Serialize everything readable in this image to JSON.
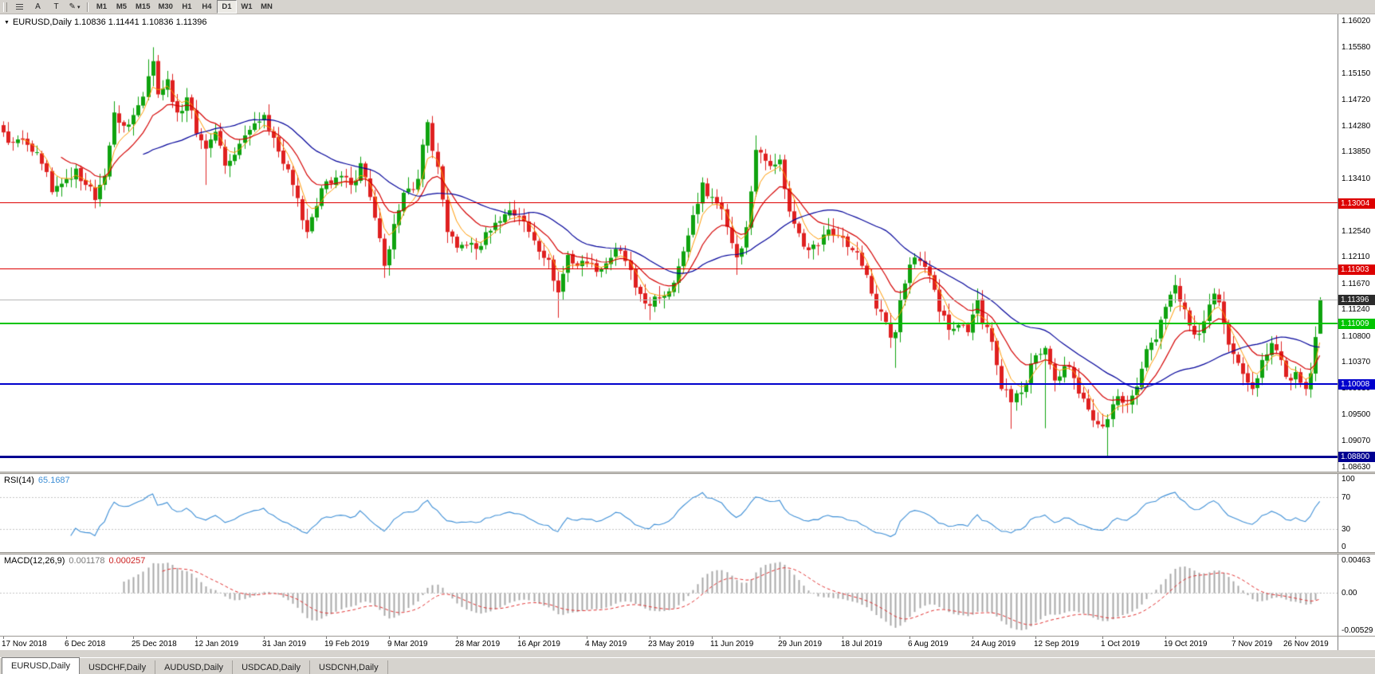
{
  "colors": {
    "bull": "#0fa30f",
    "bear": "#df2020",
    "bid_line": "#b9b9b9",
    "bid_tag": "#2b2b2b",
    "app_bg": "#d6d3ce",
    "chart_bg": "#ffffff"
  },
  "toolbar": {
    "tools": [
      {
        "id": "bars",
        "glyph": "",
        "icon": "bar-chart-icon"
      },
      {
        "id": "label-a",
        "glyph": "A",
        "icon": "text-a-icon"
      },
      {
        "id": "label-t",
        "glyph": "T",
        "icon": "text-t-icon"
      },
      {
        "id": "draw",
        "glyph": "✎",
        "caret": "▾",
        "icon": "pencil-icon"
      }
    ],
    "timeframes": [
      "M1",
      "M5",
      "M15",
      "M30",
      "H1",
      "H4",
      "D1",
      "W1",
      "MN"
    ],
    "active_timeframe": "D1"
  },
  "chart_data": {
    "type": "candlestick",
    "symbol": "EURUSD",
    "timeframe": "Daily",
    "title": "EURUSD,Daily 1.10836 1.11441 1.10836 1.11396",
    "ohlc_display": {
      "open": "1.10836",
      "high": "1.11441",
      "low": "1.10836",
      "close": "1.11396"
    },
    "bars": 274,
    "price_axis": {
      "min": 1.0863,
      "max": 1.1602,
      "ticks": [
        "1.16020",
        "1.15580",
        "1.15150",
        "1.14720",
        "1.14280",
        "1.13850",
        "1.13410",
        "1.12980",
        "1.12540",
        "1.12110",
        "1.11670",
        "1.11240",
        "1.10800",
        "1.10370",
        "1.09930",
        "1.09500",
        "1.09070",
        "1.08630"
      ]
    },
    "time_axis_labels": [
      "17 Nov 2018",
      "6 Dec 2018",
      "25 Dec 2018",
      "12 Jan 2019",
      "31 Jan 2019",
      "19 Feb 2019",
      "9 Mar 2019",
      "28 Mar 2019",
      "16 Apr 2019",
      "4 May 2019",
      "23 May 2019",
      "11 Jun 2019",
      "29 Jun 2019",
      "18 Jul 2019",
      "6 Aug 2019",
      "24 Aug 2019",
      "12 Sep 2019",
      "1 Oct 2019",
      "19 Oct 2019",
      "7 Nov 2019",
      "26 Nov 2019"
    ],
    "close_anchors": [
      [
        0,
        1.1417
      ],
      [
        2,
        1.14
      ],
      [
        4,
        1.1405
      ],
      [
        6,
        1.1385
      ],
      [
        8,
        1.1365
      ],
      [
        10,
        1.1318
      ],
      [
        12,
        1.1332
      ],
      [
        13,
        1.134
      ],
      [
        15,
        1.1357
      ],
      [
        17,
        1.133
      ],
      [
        19,
        1.1305
      ],
      [
        21,
        1.1345
      ],
      [
        23,
        1.145
      ],
      [
        25,
        1.1428
      ],
      [
        26,
        1.143
      ],
      [
        28,
        1.1462
      ],
      [
        30,
        1.151
      ],
      [
        31,
        1.1535
      ],
      [
        32,
        1.148
      ],
      [
        34,
        1.1505
      ],
      [
        36,
        1.145
      ],
      [
        38,
        1.1475
      ],
      [
        40,
        1.1415
      ],
      [
        42,
        1.139
      ],
      [
        44,
        1.1418
      ],
      [
        46,
        1.1362
      ],
      [
        48,
        1.138
      ],
      [
        50,
        1.1412
      ],
      [
        52,
        1.1432
      ],
      [
        54,
        1.1446
      ],
      [
        56,
        1.1408
      ],
      [
        58,
        1.1365
      ],
      [
        60,
        1.133
      ],
      [
        63,
        1.1252
      ],
      [
        65,
        1.1295
      ],
      [
        67,
        1.1336
      ],
      [
        70,
        1.1345
      ],
      [
        72,
        1.133
      ],
      [
        74,
        1.1366
      ],
      [
        76,
        1.131
      ],
      [
        79,
        1.1196
      ],
      [
        82,
        1.1288
      ],
      [
        84,
        1.1324
      ],
      [
        86,
        1.134
      ],
      [
        88,
        1.1434
      ],
      [
        90,
        1.136
      ],
      [
        92,
        1.1252
      ],
      [
        94,
        1.1226
      ],
      [
        96,
        1.123
      ],
      [
        98,
        1.1224
      ],
      [
        101,
        1.1254
      ],
      [
        103,
        1.127
      ],
      [
        105,
        1.1288
      ],
      [
        107,
        1.1278
      ],
      [
        110,
        1.1238
      ],
      [
        113,
        1.1206
      ],
      [
        115,
        1.1152
      ],
      [
        117,
        1.1214
      ],
      [
        119,
        1.1196
      ],
      [
        121,
        1.12
      ],
      [
        123,
        1.1186
      ],
      [
        125,
        1.12
      ],
      [
        127,
        1.1224
      ],
      [
        129,
        1.1204
      ],
      [
        131,
        1.116
      ],
      [
        134,
        1.113
      ],
      [
        136,
        1.1142
      ],
      [
        139,
        1.1168
      ],
      [
        141,
        1.122
      ],
      [
        143,
        1.128
      ],
      [
        145,
        1.1334
      ],
      [
        147,
        1.131
      ],
      [
        149,
        1.129
      ],
      [
        152,
        1.121
      ],
      [
        154,
        1.126
      ],
      [
        156,
        1.1388
      ],
      [
        158,
        1.137
      ],
      [
        161,
        1.1372
      ],
      [
        163,
        1.1286
      ],
      [
        165,
        1.125
      ],
      [
        167,
        1.1222
      ],
      [
        169,
        1.123
      ],
      [
        171,
        1.1256
      ],
      [
        173,
        1.1246
      ],
      [
        176,
        1.1222
      ],
      [
        178,
        1.1196
      ],
      [
        180,
        1.115
      ],
      [
        182,
        1.112
      ],
      [
        184,
        1.1077
      ],
      [
        185,
        1.1086
      ],
      [
        186,
        1.114
      ],
      [
        188,
        1.1198
      ],
      [
        190,
        1.1204
      ],
      [
        192,
        1.118
      ],
      [
        194,
        1.112
      ],
      [
        196,
        1.109
      ],
      [
        198,
        1.1098
      ],
      [
        200,
        1.1086
      ],
      [
        202,
        1.114
      ],
      [
        203,
        1.11
      ],
      [
        205,
        1.107
      ],
      [
        207,
        1.0992
      ],
      [
        209,
        1.097
      ],
      [
        211,
        1.0986
      ],
      [
        213,
        1.1034
      ],
      [
        215,
        1.105
      ],
      [
        216,
        1.106
      ],
      [
        218,
        1.1006
      ],
      [
        220,
        1.103
      ],
      [
        222,
        1.101
      ],
      [
        224,
        1.0976
      ],
      [
        226,
        1.094
      ],
      [
        228,
        1.093
      ],
      [
        229,
        1.0942
      ],
      [
        231,
        1.098
      ],
      [
        233,
        1.0966
      ],
      [
        235,
        1.0996
      ],
      [
        237,
        1.1058
      ],
      [
        239,
        1.1074
      ],
      [
        241,
        1.1128
      ],
      [
        243,
        1.1164
      ],
      [
        245,
        1.1124
      ],
      [
        247,
        1.1082
      ],
      [
        249,
        1.1104
      ],
      [
        251,
        1.115
      ],
      [
        253,
        1.11
      ],
      [
        255,
        1.105
      ],
      [
        257,
        1.1017
      ],
      [
        259,
        1.0992
      ],
      [
        261,
        1.104
      ],
      [
        263,
        1.1068
      ],
      [
        265,
        1.104
      ],
      [
        266,
        1.1012
      ],
      [
        268,
        1.102
      ],
      [
        269,
        1.1002
      ],
      [
        270,
        1.0992
      ],
      [
        271,
        1.1018
      ],
      [
        272,
        1.1078
      ],
      [
        273,
        1.11396
      ]
    ],
    "wick_overrides": {
      "30": {
        "h": 1.1538
      },
      "31": {
        "h": 1.1558
      },
      "42": {
        "l": 1.133
      },
      "79": {
        "l": 1.1176
      },
      "115": {
        "l": 1.111
      },
      "134": {
        "l": 1.1106
      },
      "152": {
        "l": 1.1181
      },
      "156": {
        "h": 1.1412
      },
      "184": {
        "l": 1.106
      },
      "185": {
        "l": 1.1027
      },
      "209": {
        "l": 1.0926
      },
      "216": {
        "l": 1.0927
      },
      "229": {
        "l": 1.0879
      },
      "270": {
        "l": 1.0981
      }
    },
    "last_bar": {
      "open": 1.10836,
      "high": 1.11441,
      "low": 1.10836,
      "close": 1.11396
    },
    "horizontal_lines": [
      {
        "price": 1.13004,
        "label": "1.13004",
        "color": "#dd0000",
        "height": 1
      },
      {
        "price": 1.11903,
        "label": "1.11903",
        "color": "#dd0000",
        "height": 1
      },
      {
        "price": 1.11009,
        "label": "1.11009",
        "color": "#00c400",
        "height": 2
      },
      {
        "price": 1.10008,
        "label": "1.10008",
        "color": "#0000cd",
        "height": 2
      },
      {
        "price": 1.088,
        "label": "1.08800",
        "color": "#000091",
        "height": 3
      }
    ],
    "bid_line": {
      "price": 1.11396,
      "label": "1.11396"
    },
    "moving_averages": [
      {
        "type": "ema",
        "period": 5,
        "color": "#ff9900",
        "width": 1
      },
      {
        "type": "ema",
        "period": 13,
        "color": "#d40000",
        "width": 1.2
      },
      {
        "type": "sma",
        "period": 30,
        "color": "#000099",
        "width": 1.2
      }
    ],
    "rsi": {
      "label": "RSI(14)",
      "value": "65.1687",
      "period": 14,
      "color": "#3e8fd6",
      "scale": [
        {
          "v": 100,
          "label": "100"
        },
        {
          "v": 70,
          "label": "70"
        },
        {
          "v": 30,
          "label": "30"
        },
        {
          "v": 0,
          "label": "0"
        }
      ],
      "levels": [
        70,
        30
      ]
    },
    "macd": {
      "label": "MACD(12,26,9)",
      "value_main": "0.001178",
      "value_signal": "0.000257",
      "fast": 12,
      "slow": 26,
      "signal": 9,
      "scale_top": "0.00463",
      "scale_zero": "0.00",
      "scale_bottom": "-0.00529",
      "hist_color": "#a8a8a8",
      "signal_color": "#e03030"
    }
  },
  "tabs": {
    "items": [
      "EURUSD,Daily",
      "USDCHF,Daily",
      "AUDUSD,Daily",
      "USDCAD,Daily",
      "USDCNH,Daily"
    ],
    "active": "EURUSD,Daily"
  }
}
